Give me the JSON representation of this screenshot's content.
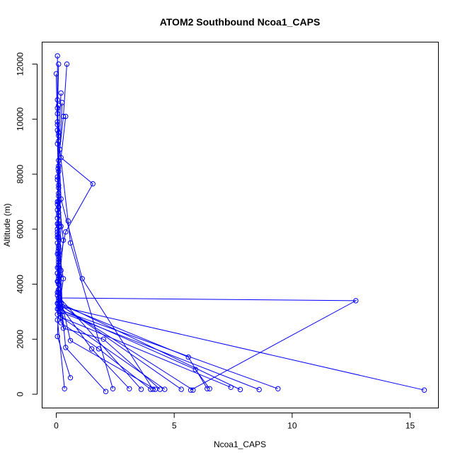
{
  "chart_data": {
    "type": "line",
    "title": "ATOM2 Southbound Ncoa1_CAPS",
    "xlabel": "Ncoa1_CAPS",
    "ylabel": "Altitude (m)",
    "xlim": [
      -0.6,
      16.2
    ],
    "ylim": [
      -500,
      12800
    ],
    "x_ticks": [
      0,
      5,
      10,
      15
    ],
    "y_ticks": [
      0,
      2000,
      4000,
      6000,
      8000,
      10000,
      12000
    ],
    "x_tick_labels": [
      "0",
      "5",
      "10",
      "15"
    ],
    "y_tick_labels": [
      "0",
      "2000",
      "4000",
      "6000",
      "8000",
      "10000",
      "12000"
    ],
    "grid": false,
    "legend": "none",
    "series_color": "#0000ff",
    "marker": "open-circle",
    "series": [
      {
        "points": [
          [
            0.05,
            12300
          ],
          [
            0.05,
            10400
          ],
          [
            0.08,
            8200
          ],
          [
            0.1,
            6100
          ],
          [
            0.08,
            4100
          ],
          [
            0.1,
            3200
          ],
          [
            15.6,
            150
          ]
        ]
      },
      {
        "points": [
          [
            0.1,
            12000
          ],
          [
            0.05,
            10200
          ],
          [
            0.1,
            7000
          ],
          [
            0.08,
            5200
          ],
          [
            0.1,
            3500
          ],
          [
            12.7,
            3400
          ],
          [
            5.7,
            150
          ]
        ]
      },
      {
        "points": [
          [
            0.45,
            12000
          ],
          [
            0.3,
            10100
          ],
          [
            0.1,
            8500
          ],
          [
            0.2,
            6100
          ],
          [
            0.1,
            4000
          ],
          [
            0.05,
            3100
          ],
          [
            9.4,
            200
          ]
        ]
      },
      {
        "points": [
          [
            0.0,
            11650
          ],
          [
            0.05,
            9600
          ],
          [
            0.1,
            7500
          ],
          [
            0.05,
            5800
          ],
          [
            0.1,
            3800
          ],
          [
            0.15,
            3000
          ],
          [
            8.6,
            170
          ]
        ]
      },
      {
        "points": [
          [
            0.2,
            10950
          ],
          [
            0.1,
            9200
          ],
          [
            0.2,
            7100
          ],
          [
            1.1,
            4200
          ],
          [
            4.1,
            180
          ]
        ]
      },
      {
        "points": [
          [
            0.25,
            10600
          ],
          [
            0.15,
            8900
          ],
          [
            0.5,
            6300
          ],
          [
            0.6,
            5500
          ],
          [
            2.4,
            200
          ]
        ]
      },
      {
        "points": [
          [
            0.4,
            10100
          ],
          [
            0.2,
            8600
          ],
          [
            1.55,
            7650
          ],
          [
            0.4,
            5900
          ],
          [
            0.1,
            4700
          ],
          [
            0.2,
            3300
          ],
          [
            7.8,
            170
          ]
        ]
      },
      {
        "points": [
          [
            0.05,
            10700
          ],
          [
            0.1,
            9400
          ],
          [
            0.05,
            7800
          ],
          [
            0.1,
            6500
          ],
          [
            0.2,
            4500
          ],
          [
            0.25,
            3200
          ],
          [
            5.3,
            180
          ]
        ]
      },
      {
        "points": [
          [
            0.1,
            10500
          ],
          [
            0.05,
            9900
          ],
          [
            0.1,
            7200
          ],
          [
            0.3,
            5600
          ],
          [
            0.15,
            4300
          ],
          [
            0.05,
            3600
          ],
          [
            3.6,
            180
          ]
        ]
      },
      {
        "points": [
          [
            0.05,
            9800
          ],
          [
            0.1,
            8100
          ],
          [
            0.05,
            6700
          ],
          [
            0.1,
            5300
          ],
          [
            0.3,
            4200
          ],
          [
            0.05,
            2700
          ],
          [
            0.35,
            200
          ]
        ]
      },
      {
        "points": [
          [
            0.1,
            9500
          ],
          [
            0.05,
            7900
          ],
          [
            0.1,
            6600
          ],
          [
            0.1,
            4900
          ],
          [
            0.1,
            3400
          ],
          [
            0.05,
            2100
          ],
          [
            0.6,
            600
          ]
        ]
      },
      {
        "points": [
          [
            0.05,
            9100
          ],
          [
            0.1,
            7600
          ],
          [
            0.05,
            6200
          ],
          [
            0.1,
            5000
          ],
          [
            0.25,
            3000
          ],
          [
            0.4,
            1700
          ],
          [
            2.1,
            100
          ]
        ]
      },
      {
        "points": [
          [
            0.1,
            8300
          ],
          [
            0.05,
            6900
          ],
          [
            0.1,
            5400
          ],
          [
            0.05,
            4400
          ],
          [
            0.1,
            3300
          ],
          [
            1.5,
            1650
          ],
          [
            3.1,
            200
          ]
        ]
      },
      {
        "points": [
          [
            0.1,
            7300
          ],
          [
            0.05,
            6000
          ],
          [
            0.1,
            4800
          ],
          [
            0.05,
            3700
          ],
          [
            0.2,
            2600
          ],
          [
            1.8,
            1650
          ],
          [
            4.0,
            180
          ]
        ]
      },
      {
        "points": [
          [
            0.05,
            7000
          ],
          [
            0.1,
            5700
          ],
          [
            0.05,
            4600
          ],
          [
            0.1,
            3500
          ],
          [
            0.3,
            2400
          ],
          [
            2.0,
            2000
          ],
          [
            4.4,
            180
          ]
        ]
      },
      {
        "points": [
          [
            0.1,
            6800
          ],
          [
            0.05,
            5500
          ],
          [
            0.1,
            4300
          ],
          [
            0.05,
            3300
          ],
          [
            5.6,
            1350
          ],
          [
            6.4,
            200
          ]
        ]
      },
      {
        "points": [
          [
            0.05,
            6400
          ],
          [
            0.1,
            5100
          ],
          [
            0.05,
            4100
          ],
          [
            0.1,
            3100
          ],
          [
            5.9,
            900
          ],
          [
            6.5,
            200
          ]
        ]
      },
      {
        "points": [
          [
            0.1,
            6200
          ],
          [
            0.05,
            5900
          ],
          [
            0.1,
            4000
          ],
          [
            0.05,
            2900
          ],
          [
            4.6,
            180
          ]
        ]
      },
      {
        "points": [
          [
            0.05,
            5700
          ],
          [
            0.1,
            4600
          ],
          [
            0.1,
            3800
          ],
          [
            0.6,
            1950
          ],
          [
            4.2,
            180
          ]
        ]
      },
      {
        "points": [
          [
            0.1,
            5300
          ],
          [
            0.05,
            4400
          ],
          [
            0.1,
            3700
          ],
          [
            0.2,
            2800
          ],
          [
            7.4,
            250
          ]
        ]
      },
      {
        "points": [
          [
            0.05,
            5100
          ],
          [
            0.1,
            4200
          ],
          [
            0.05,
            3300
          ],
          [
            5.8,
            150
          ]
        ]
      }
    ]
  }
}
